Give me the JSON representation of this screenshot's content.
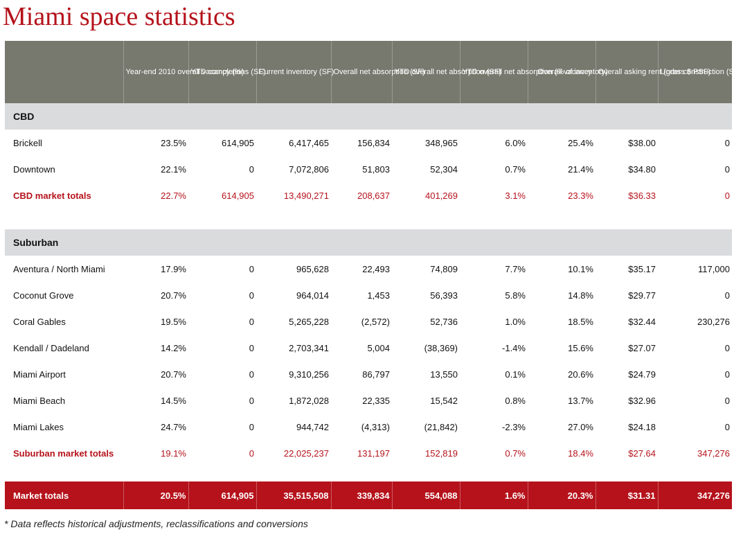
{
  "title": "Miami space statistics",
  "headers": [
    "",
    "Year-end 2010 overall vacancy (%)",
    "YTD completions (SF)",
    "Current inventory (SF)",
    "Overall net absorption (SF)",
    "YTD overall net absorption (SF)",
    "YTD overall net absorption (% of inventory)",
    "Overall vacancy",
    "Overall asking rent (gross $ PSF)",
    "Under construction (SF)"
  ],
  "sections": {
    "cbd": {
      "label": "CBD",
      "rows": [
        [
          "Brickell",
          "23.5%",
          "614,905",
          "6,417,465",
          "156,834",
          "348,965",
          "6.0%",
          "25.4%",
          "$38.00",
          "0"
        ],
        [
          "Downtown",
          "22.1%",
          "0",
          "7,072,806",
          "51,803",
          "52,304",
          "0.7%",
          "21.4%",
          "$34.80",
          "0"
        ]
      ],
      "total": [
        "CBD market totals",
        "22.7%",
        "614,905",
        "13,490,271",
        "208,637",
        "401,269",
        "3.1%",
        "23.3%",
        "$36.33",
        "0"
      ]
    },
    "suburban": {
      "label": "Suburban",
      "rows": [
        [
          "Aventura / North Miami",
          "17.9%",
          "0",
          "965,628",
          "22,493",
          "74,809",
          "7.7%",
          "10.1%",
          "$35.17",
          "117,000"
        ],
        [
          "Coconut Grove",
          "20.7%",
          "0",
          "964,014",
          "1,453",
          "56,393",
          "5.8%",
          "14.8%",
          "$29.77",
          "0"
        ],
        [
          "Coral Gables",
          "19.5%",
          "0",
          "5,265,228",
          "(2,572)",
          "52,736",
          "1.0%",
          "18.5%",
          "$32.44",
          "230,276"
        ],
        [
          "Kendall / Dadeland",
          "14.2%",
          "0",
          "2,703,341",
          "5,004",
          "(38,369)",
          "-1.4%",
          "15.6%",
          "$27.07",
          "0"
        ],
        [
          "Miami Airport",
          "20.7%",
          "0",
          "9,310,256",
          "86,797",
          "13,550",
          "0.1%",
          "20.6%",
          "$24.79",
          "0"
        ],
        [
          "Miami Beach",
          "14.5%",
          "0",
          "1,872,028",
          "22,335",
          "15,542",
          "0.8%",
          "13.7%",
          "$32.96",
          "0"
        ],
        [
          "Miami Lakes",
          "24.7%",
          "0",
          "944,742",
          "(4,313)",
          "(21,842)",
          "-2.3%",
          "27.0%",
          "$24.18",
          "0"
        ]
      ],
      "total": [
        "Suburban market totals",
        "19.1%",
        "0",
        "22,025,237",
        "131,197",
        "152,819",
        "0.7%",
        "18.4%",
        "$27.64",
        "347,276"
      ]
    }
  },
  "market_totals": [
    "Market totals",
    "20.5%",
    "614,905",
    "35,515,508",
    "339,834",
    "554,088",
    "1.6%",
    "20.3%",
    "$31.31",
    "347,276"
  ],
  "footnote": "* Data reflects historical adjustments, reclassifications and conversions",
  "colors": {
    "accent": "#b5121b",
    "header_bg": "#77796f",
    "section_bg": "#dadbdd"
  }
}
